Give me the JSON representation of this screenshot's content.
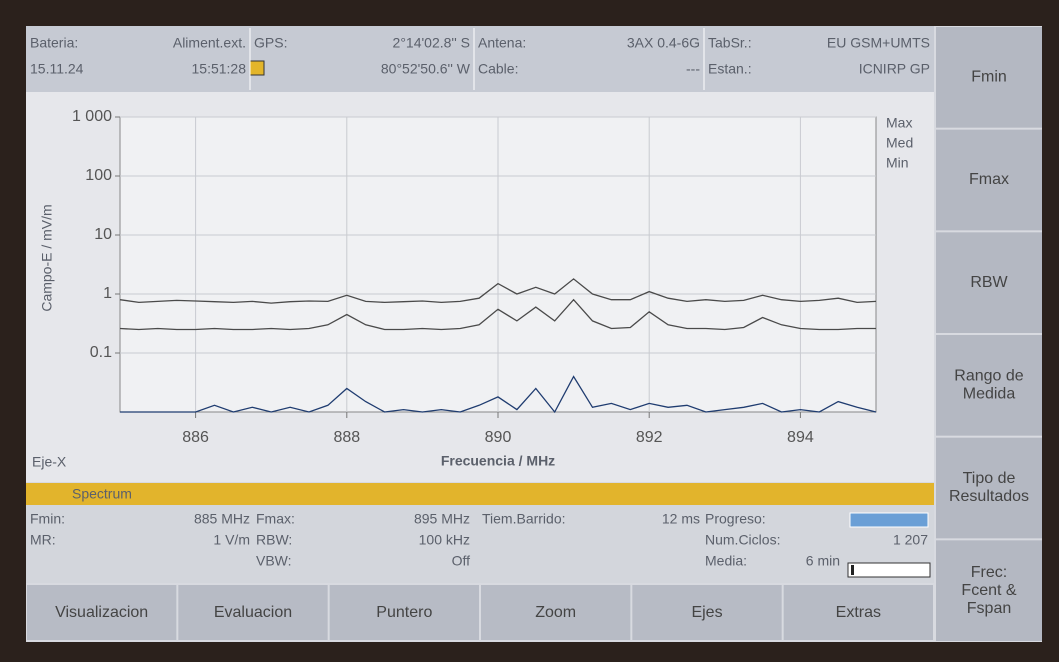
{
  "header": {
    "columns": [
      {
        "top": [
          "Bateria:",
          "Aliment.ext."
        ],
        "bottom": [
          "15.11.24",
          "15:51:28"
        ]
      },
      {
        "top": [
          "GPS:",
          "2°14'02.8'' S"
        ],
        "bottom": [
          "",
          "80°52'50.6'' W"
        ]
      },
      {
        "top": [
          "Antena:",
          "3AX 0.4-6G"
        ],
        "bottom": [
          "Cable:",
          "---"
        ]
      },
      {
        "top": [
          "TabSr.:",
          "EU GSM+UMTS"
        ],
        "bottom": [
          "Estan.:",
          "ICNIRP GP"
        ]
      }
    ]
  },
  "chart_data": {
    "type": "line",
    "log_y": true,
    "grid": true,
    "x_label": "Frecuencia / MHz",
    "y_label": "Campo-E / mV/m",
    "x_note": "Eje-X",
    "x": [
      885,
      885.25,
      885.5,
      885.75,
      886,
      886.25,
      886.5,
      886.75,
      887,
      887.25,
      887.5,
      887.75,
      888,
      888.25,
      888.5,
      888.75,
      889,
      889.25,
      889.5,
      889.75,
      890,
      890.25,
      890.5,
      890.75,
      891,
      891.25,
      891.5,
      891.75,
      892,
      892.25,
      892.5,
      892.75,
      893,
      893.25,
      893.5,
      893.75,
      894,
      894.25,
      894.5,
      894.75,
      895
    ],
    "xlim": [
      885,
      895
    ],
    "xticks": [
      886,
      888,
      890,
      892,
      894
    ],
    "ylim": [
      0.01,
      1000
    ],
    "yticks": [
      0.1,
      1,
      10,
      100,
      {
        "value": 1000,
        "label": "1 000"
      }
    ],
    "series": [
      {
        "name": "Max",
        "color": "#4a4a4a",
        "values": [
          0.8,
          0.72,
          0.75,
          0.78,
          0.76,
          0.74,
          0.72,
          0.75,
          0.7,
          0.74,
          0.76,
          0.75,
          0.95,
          0.75,
          0.72,
          0.74,
          0.76,
          0.72,
          0.75,
          0.85,
          1.5,
          1.0,
          1.3,
          1.0,
          1.8,
          1.0,
          0.8,
          0.8,
          1.1,
          0.85,
          0.75,
          0.8,
          0.75,
          0.78,
          0.95,
          0.8,
          0.75,
          0.78,
          0.85,
          0.72,
          0.75
        ]
      },
      {
        "name": "Med",
        "color": "#4a4a4a",
        "values": [
          0.26,
          0.25,
          0.26,
          0.25,
          0.25,
          0.26,
          0.25,
          0.25,
          0.26,
          0.25,
          0.26,
          0.3,
          0.45,
          0.3,
          0.25,
          0.25,
          0.26,
          0.25,
          0.26,
          0.3,
          0.55,
          0.35,
          0.6,
          0.35,
          0.8,
          0.35,
          0.26,
          0.27,
          0.5,
          0.3,
          0.26,
          0.26,
          0.25,
          0.27,
          0.4,
          0.3,
          0.26,
          0.25,
          0.25,
          0.26,
          0.26
        ]
      },
      {
        "name": "Min",
        "color": "#1f3c70",
        "values": [
          0.01,
          0.01,
          0.01,
          0.01,
          0.01,
          0.013,
          0.01,
          0.012,
          0.01,
          0.012,
          0.01,
          0.013,
          0.025,
          0.015,
          0.01,
          0.011,
          0.01,
          0.011,
          0.01,
          0.013,
          0.018,
          0.011,
          0.025,
          0.01,
          0.04,
          0.012,
          0.014,
          0.011,
          0.014,
          0.012,
          0.013,
          0.01,
          0.011,
          0.012,
          0.014,
          0.01,
          0.011,
          0.01,
          0.015,
          0.012,
          0.01
        ]
      }
    ]
  },
  "status": {
    "title": "Spectrum",
    "fields": [
      {
        "label": "Fmin:",
        "value": "885 MHz"
      },
      {
        "label": "Fmax:",
        "value": "895 MHz"
      },
      {
        "label": "Tiem.Barrido:",
        "value": "12 ms"
      },
      {
        "label": "Progreso:"
      },
      {
        "label": "MR:",
        "value": "1 V/m"
      },
      {
        "label": "RBW:",
        "value": "100 kHz"
      },
      {
        "label": "Num.Ciclos:",
        "value": "1 207"
      },
      {
        "label": "VBW:",
        "value": "Off"
      },
      {
        "label": "Media:",
        "value": "6 min"
      }
    ]
  },
  "menu": [
    "Visualizacion",
    "Evaluacion",
    "Puntero",
    "Zoom",
    "Ejes",
    "Extras"
  ],
  "softkeys": [
    [
      "Fmin"
    ],
    [
      "Fmax"
    ],
    [
      "RBW"
    ],
    [
      "Rango de",
      "Medida"
    ],
    [
      "Tipo de",
      "Resultados"
    ],
    [
      "Frec:",
      "Fcent &",
      "Fspan"
    ]
  ]
}
